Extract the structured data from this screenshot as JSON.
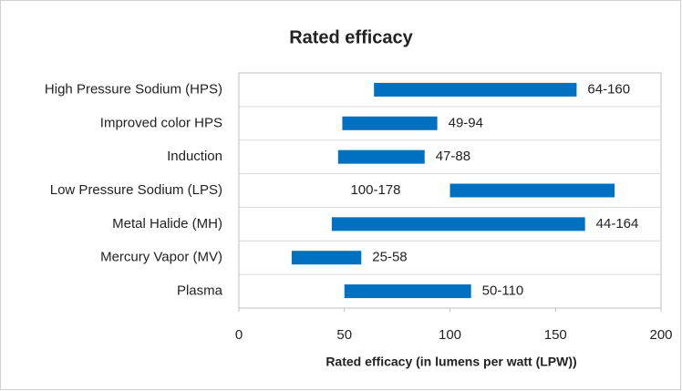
{
  "chart_data": {
    "type": "range_bar",
    "title": "Rated efficacy",
    "x_label": "Rated efficacy (in lumens per watt (LPW))",
    "categories": [
      "High Pressure Sodium (HPS)",
      "Improved color HPS",
      "Induction",
      "Low Pressure Sodium (LPS)",
      "Metal Halide (MH)",
      "Mercury Vapor (MV)",
      "Plasma"
    ],
    "values": [
      [
        64,
        160
      ],
      [
        49,
        94
      ],
      [
        47,
        88
      ],
      [
        100,
        178
      ],
      [
        44,
        164
      ],
      [
        25,
        58
      ],
      [
        50,
        110
      ]
    ],
    "value_labels": [
      "64-160",
      "49-94",
      "47-88",
      "100-178",
      "44-164",
      "25-58",
      "50-110"
    ],
    "color": "#0070c0",
    "xlim": [
      0,
      200
    ],
    "xticks": [
      0,
      50,
      100,
      150,
      200
    ]
  }
}
